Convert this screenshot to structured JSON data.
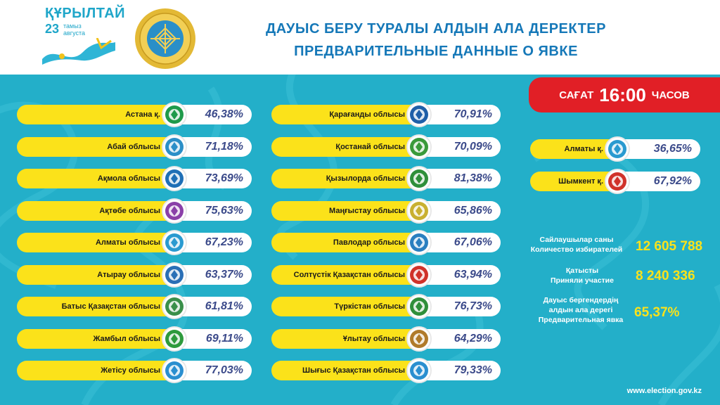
{
  "header": {
    "logo_title": "ҚҰРЫЛТАЙ",
    "logo_number": "23",
    "logo_sub1": "тамыз",
    "logo_sub2": "августа",
    "title_line1": "ДАУЫС БЕРУ ТУРАЛЫ АЛДЫН АЛА ДЕРЕКТЕР",
    "title_line2": "ПРЕДВАРИТЕЛЬНЫЕ ДАННЫЕ О ЯВКЕ"
  },
  "time": {
    "prefix": "САҒАТ",
    "value": "16:00",
    "suffix": "ЧАСОВ"
  },
  "regions_left": [
    {
      "name": "Астана  қ.",
      "value": "46,38%",
      "icon": "astana-emblem-icon",
      "color": "#1f9a4a"
    },
    {
      "name": "Абай облысы",
      "value": "71,18%",
      "icon": "abai-emblem-icon",
      "color": "#2c8fc7"
    },
    {
      "name": "Ақмола облысы",
      "value": "73,69%",
      "icon": "akmola-emblem-icon",
      "color": "#1f6fb6"
    },
    {
      "name": "Ақтөбе облысы",
      "value": "75,63%",
      "icon": "aktobe-emblem-icon",
      "color": "#8a3fa8"
    },
    {
      "name": "Алматы облысы",
      "value": "67,23%",
      "icon": "almaty-region-emblem-icon",
      "color": "#2a9ad0"
    },
    {
      "name": "Атырау облысы",
      "value": "63,37%",
      "icon": "atyrau-emblem-icon",
      "color": "#2a6fb6"
    },
    {
      "name": "Батыс Қазақстан облысы",
      "value": "61,81%",
      "icon": "west-kazakhstan-emblem-icon",
      "color": "#3a8f4a"
    },
    {
      "name": "Жамбыл облысы",
      "value": "69,11%",
      "icon": "zhambyl-emblem-icon",
      "color": "#2e9a3c"
    },
    {
      "name": "Жетісу облысы",
      "value": "77,03%",
      "icon": "zhetisu-emblem-icon",
      "color": "#2a8fd0"
    }
  ],
  "regions_mid": [
    {
      "name": "Қарағанды облысы",
      "value": "70,91%",
      "icon": "karaganda-emblem-icon",
      "color": "#1f5fa8"
    },
    {
      "name": "Қостанай облысы",
      "value": "70,09%",
      "icon": "kostanay-emblem-icon",
      "color": "#3a9a3a"
    },
    {
      "name": "Қызылорда облысы",
      "value": "81,38%",
      "icon": "kyzylorda-emblem-icon",
      "color": "#2f8f3a"
    },
    {
      "name": "Маңғыстау облысы",
      "value": "65,86%",
      "icon": "mangystau-emblem-icon",
      "color": "#c9b030"
    },
    {
      "name": "Павлодар облысы",
      "value": "67,06%",
      "icon": "pavlodar-emblem-icon",
      "color": "#2a7fc0"
    },
    {
      "name": "Солтүстік Қазақстан облысы",
      "value": "63,94%",
      "icon": "north-kazakhstan-emblem-icon",
      "color": "#d0322a"
    },
    {
      "name": "Түркістан облысы",
      "value": "76,73%",
      "icon": "turkistan-emblem-icon",
      "color": "#2f8f3a"
    },
    {
      "name": "Ұлытау облысы",
      "value": "64,29%",
      "icon": "ulytau-emblem-icon",
      "color": "#b07a2a"
    },
    {
      "name": "Шығыс Қазақстан облысы",
      "value": "79,33%",
      "icon": "east-kazakhstan-emblem-icon",
      "color": "#2a8fd0"
    }
  ],
  "regions_right": [
    {
      "name": "Алматы қ.",
      "value": "36,65%",
      "icon": "almaty-city-emblem-icon",
      "color": "#2a9ad0"
    },
    {
      "name": "Шымкент қ.",
      "value": "67,92%",
      "icon": "shymkent-emblem-icon",
      "color": "#d0322a"
    }
  ],
  "stats": {
    "voters_label1": "Сайлаушылар саны",
    "voters_label2": "Количество избирателей",
    "voters_value": "12 605 788",
    "participated_label1": "Қатысты",
    "participated_label2": "Приняли участие",
    "participated_value": "8 240 336",
    "turnout_label1": "Дауыс бергендердің",
    "turnout_label2": "алдын ала дерегі",
    "turnout_label3": "Предварительная явка",
    "turnout_value": "65,37%"
  },
  "footer": {
    "website": "www.election.gov.kz"
  }
}
